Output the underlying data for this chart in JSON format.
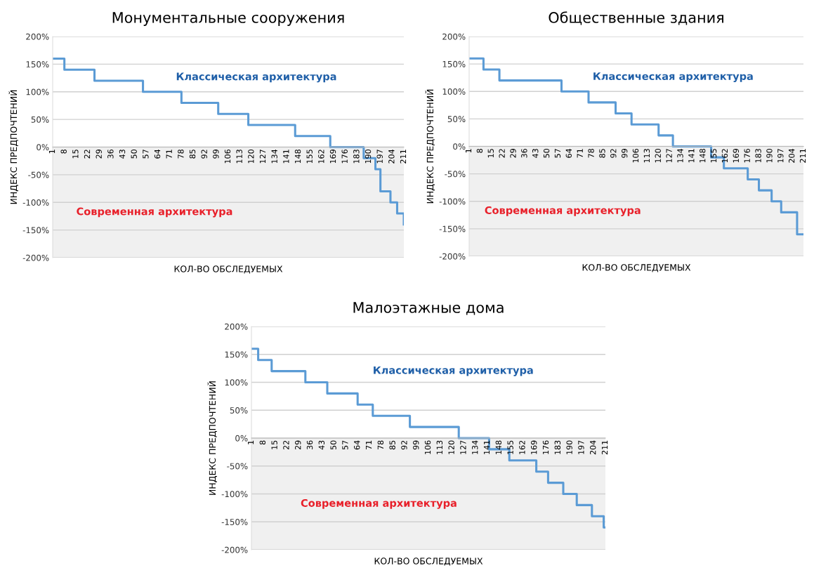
{
  "chart_data": [
    {
      "type": "step",
      "title": "Монументальные сооружения",
      "xlabel": "КОЛ-ВО ОБСЛЕДУЕМЫХ",
      "ylabel": "ИНДЕКС ПРЕДПОЧТЕНИЙ",
      "x": [
        1,
        8,
        26,
        55,
        78,
        100,
        118,
        146,
        167,
        187,
        194,
        197,
        203,
        207,
        211
      ],
      "values": [
        160,
        140,
        120,
        100,
        80,
        60,
        40,
        20,
        0,
        -20,
        -40,
        -80,
        -100,
        -120,
        -140
      ],
      "color": "#5b9bd5",
      "xlim": [
        1,
        211
      ],
      "xticks": [
        1,
        8,
        15,
        22,
        29,
        36,
        43,
        50,
        57,
        64,
        71,
        78,
        85,
        92,
        99,
        106,
        113,
        120,
        127,
        134,
        141,
        148,
        155,
        162,
        169,
        176,
        183,
        190,
        197,
        204,
        211
      ],
      "ylim": [
        -200,
        200
      ],
      "yticks": [
        {
          "value": -200,
          "label": "-200%"
        },
        {
          "value": -150,
          "label": "-150%"
        },
        {
          "value": -100,
          "label": "-100%"
        },
        {
          "value": -50,
          "label": "-50%"
        },
        {
          "value": 0,
          "label": "0%"
        },
        {
          "value": 50,
          "label": "50%"
        },
        {
          "value": 100,
          "label": "100%"
        },
        {
          "value": 150,
          "label": "150%"
        },
        {
          "value": 200,
          "label": "200%"
        }
      ],
      "grid": "y",
      "bands": [
        {
          "axis": "y",
          "from": -200,
          "to": 0,
          "color": "#f0f0f0"
        }
      ],
      "annotations": [
        "Классическая архитектура",
        "Современная архитектура"
      ]
    },
    {
      "type": "step",
      "title": "Общественные здания",
      "xlabel": "КОЛ-ВО ОБСЛЕДУЕМЫХ",
      "ylabel": "ИНДЕКС ПРЕДПОЧТЕНИЙ",
      "x": [
        1,
        10,
        20,
        59,
        76,
        93,
        103,
        120,
        129,
        153,
        161,
        176,
        183,
        191,
        197,
        207,
        211
      ],
      "values": [
        160,
        140,
        120,
        100,
        80,
        60,
        40,
        20,
        0,
        -20,
        -40,
        -60,
        -80,
        -100,
        -120,
        -160,
        -160
      ],
      "color": "#5b9bd5",
      "xlim": [
        1,
        211
      ],
      "xticks": [
        1,
        8,
        15,
        22,
        29,
        36,
        43,
        50,
        57,
        64,
        71,
        78,
        85,
        92,
        99,
        106,
        113,
        120,
        127,
        134,
        141,
        148,
        155,
        162,
        169,
        176,
        183,
        190,
        197,
        204,
        211
      ],
      "ylim": [
        -200,
        200
      ],
      "yticks": [
        {
          "value": -200,
          "label": "-200%"
        },
        {
          "value": -150,
          "label": "-150%"
        },
        {
          "value": -100,
          "label": "-100%"
        },
        {
          "value": -50,
          "label": "-50%"
        },
        {
          "value": 0,
          "label": "0%"
        },
        {
          "value": 50,
          "label": "50%"
        },
        {
          "value": 100,
          "label": "100%"
        },
        {
          "value": 150,
          "label": "150%"
        },
        {
          "value": 200,
          "label": "200%"
        }
      ],
      "grid": "y",
      "bands": [
        {
          "axis": "y",
          "from": -200,
          "to": 0,
          "color": "#f0f0f0"
        }
      ],
      "annotations": [
        "Классическая архитектура",
        "Современная архитектура"
      ]
    },
    {
      "type": "step",
      "title": "Малоэтажные дома",
      "xlabel": "КОЛ-ВО ОБСЛЕДУЕМЫХ",
      "ylabel": "ИНДЕКС ПРЕДПОЧТЕНИЙ",
      "x": [
        1,
        5,
        13,
        33,
        46,
        64,
        73,
        95,
        124,
        142,
        154,
        170,
        177,
        186,
        194,
        203,
        210,
        211
      ],
      "values": [
        160,
        140,
        120,
        100,
        80,
        60,
        40,
        20,
        0,
        -20,
        -40,
        -60,
        -80,
        -100,
        -120,
        -140,
        -160,
        -160
      ],
      "color": "#5b9bd5",
      "xlim": [
        1,
        211
      ],
      "xticks": [
        1,
        8,
        15,
        22,
        29,
        36,
        43,
        50,
        57,
        64,
        71,
        78,
        85,
        92,
        99,
        106,
        113,
        120,
        127,
        134,
        141,
        148,
        155,
        162,
        169,
        176,
        183,
        190,
        197,
        204,
        211
      ],
      "ylim": [
        -200,
        200
      ],
      "yticks": [
        {
          "value": -200,
          "label": "-200%"
        },
        {
          "value": -150,
          "label": "-150%"
        },
        {
          "value": -100,
          "label": "-100%"
        },
        {
          "value": -50,
          "label": "-50%"
        },
        {
          "value": 0,
          "label": "0%"
        },
        {
          "value": 50,
          "label": "50%"
        },
        {
          "value": 100,
          "label": "100%"
        },
        {
          "value": 150,
          "label": "150%"
        },
        {
          "value": 200,
          "label": "200%"
        }
      ],
      "grid": "y",
      "bands": [
        {
          "axis": "y",
          "from": -200,
          "to": 0,
          "color": "#f0f0f0"
        }
      ],
      "annotations": [
        "Классическая архитектура",
        "Современная архитектура"
      ]
    }
  ]
}
